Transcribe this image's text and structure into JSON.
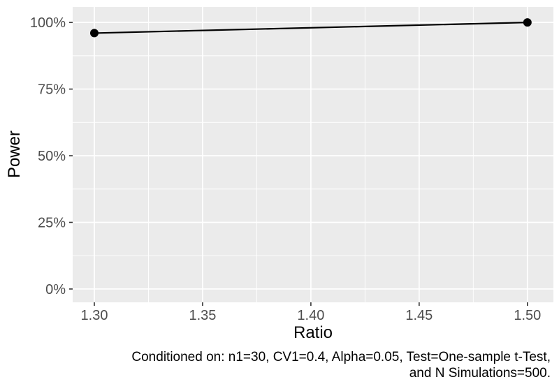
{
  "chart_data": {
    "type": "line",
    "title": "",
    "xlabel": "Ratio",
    "ylabel": "Power",
    "series": [
      {
        "name": "Power",
        "x": [
          1.3,
          1.5
        ],
        "y": [
          96,
          100
        ]
      }
    ],
    "x_ticks": {
      "values": [
        1.3,
        1.35,
        1.4,
        1.45,
        1.5
      ],
      "labels": [
        "1.30",
        "1.35",
        "1.40",
        "1.45",
        "1.50"
      ]
    },
    "y_ticks": {
      "values": [
        0,
        25,
        50,
        75,
        100
      ],
      "labels": [
        "0%",
        "25%",
        "50%",
        "75%",
        "100%"
      ]
    },
    "xlim": [
      1.29,
      1.512
    ],
    "ylim": [
      -5,
      105.8
    ],
    "y_unit": "percent",
    "grid": true,
    "legend": "none",
    "caption_lines": [
      "Conditioned on: n1=30, CV1=0.4, Alpha=0.05, Test=One-sample t-Test,",
      "and N Simulations=500."
    ]
  },
  "colors": {
    "background": "#FFFFFF",
    "panel_bg": "#EBEBEB",
    "grid": "#FFFFFF",
    "line": "#000000",
    "point": "#000000",
    "tick_text": "#4D4D4D",
    "tick_mark": "#333333",
    "axis_title": "#000000",
    "caption": "#000000"
  }
}
